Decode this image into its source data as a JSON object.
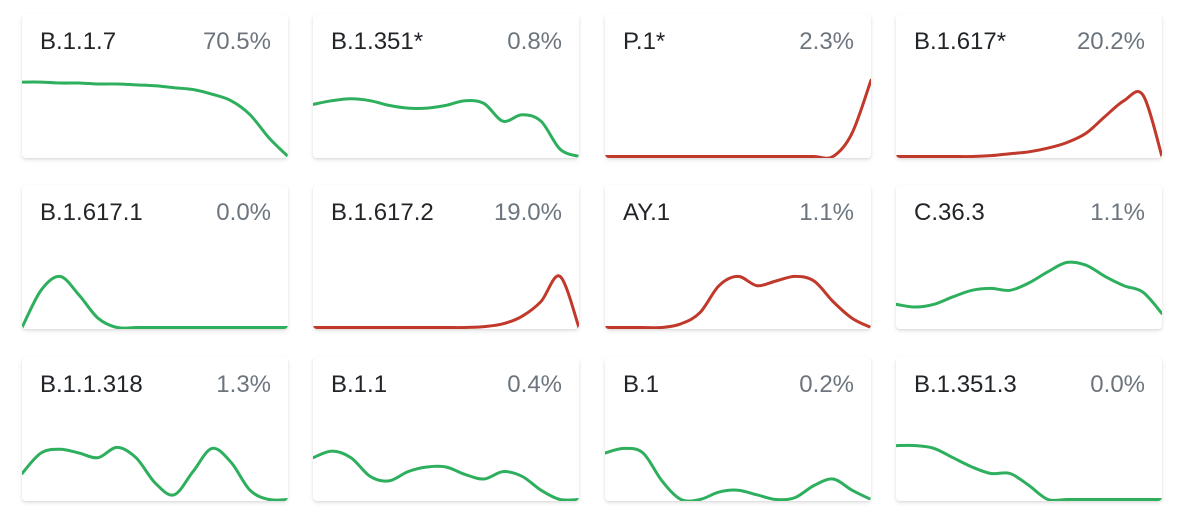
{
  "colors": {
    "increasing": "#2eaf5e",
    "decreasing": "#c0392b"
  },
  "variants": [
    {
      "name": "B.1.1.7",
      "share": "70.5%",
      "trend": "increasing",
      "curve": [
        0.2,
        0.2,
        0.21,
        0.21,
        0.22,
        0.22,
        0.23,
        0.24,
        0.26,
        0.28,
        0.33,
        0.4,
        0.55,
        0.8,
        1.05
      ]
    },
    {
      "name": "B.1.351*",
      "share": "0.8%",
      "trend": "increasing",
      "curve": [
        0.44,
        0.4,
        0.38,
        0.4,
        0.45,
        0.48,
        0.48,
        0.45,
        0.4,
        0.43,
        0.62,
        0.55,
        0.62,
        0.92,
        1.03
      ]
    },
    {
      "name": "P.1*",
      "share": "2.3%",
      "trend": "decreasing",
      "curve": [
        1.03,
        1.03,
        1.03,
        1.03,
        1.02,
        1.02,
        1.02,
        1.02,
        1.02,
        1.02,
        1.02,
        1.02,
        1.0,
        0.75,
        0.18
      ]
    },
    {
      "name": "B.1.617*",
      "share": "20.2%",
      "trend": "decreasing",
      "curve": [
        1.02,
        1.01,
        1.01,
        1.0,
        1.0,
        0.99,
        0.97,
        0.95,
        0.91,
        0.85,
        0.75,
        0.57,
        0.4,
        0.34,
        1.02
      ]
    },
    {
      "name": "B.1.617.1",
      "share": "0.0%",
      "trend": "increasing",
      "curve": [
        1.02,
        0.6,
        0.45,
        0.65,
        0.9,
        1.02,
        1.03,
        1.03,
        1.03,
        1.03,
        1.03,
        1.03,
        1.03,
        1.03,
        1.03
      ]
    },
    {
      "name": "B.1.617.2",
      "share": "19.0%",
      "trend": "decreasing",
      "curve": [
        1.02,
        1.02,
        1.01,
        1.01,
        1.01,
        1.0,
        1.0,
        1.0,
        1.0,
        0.99,
        0.96,
        0.88,
        0.72,
        0.45,
        1.02
      ]
    },
    {
      "name": "AY.1",
      "share": "1.1%",
      "trend": "decreasing",
      "curve": [
        1.02,
        1.02,
        1.01,
        1.0,
        0.96,
        0.84,
        0.55,
        0.45,
        0.55,
        0.5,
        0.45,
        0.5,
        0.72,
        0.9,
        1.02
      ]
    },
    {
      "name": "C.36.3",
      "share": "1.1%",
      "trend": "increasing",
      "curve": [
        0.75,
        0.78,
        0.75,
        0.67,
        0.6,
        0.58,
        0.6,
        0.52,
        0.4,
        0.3,
        0.33,
        0.45,
        0.55,
        0.62,
        0.85
      ]
    },
    {
      "name": "B.1.1.318",
      "share": "1.3%",
      "trend": "increasing",
      "curve": [
        0.72,
        0.5,
        0.46,
        0.5,
        0.55,
        0.44,
        0.55,
        0.82,
        0.95,
        0.7,
        0.45,
        0.6,
        0.9,
        1.03,
        1.03
      ]
    },
    {
      "name": "B.1.1",
      "share": "0.4%",
      "trend": "increasing",
      "curve": [
        0.55,
        0.48,
        0.55,
        0.75,
        0.8,
        0.7,
        0.65,
        0.65,
        0.73,
        0.78,
        0.7,
        0.75,
        0.9,
        1.02,
        1.03
      ]
    },
    {
      "name": "B.1",
      "share": "0.2%",
      "trend": "increasing",
      "curve": [
        0.5,
        0.45,
        0.5,
        0.8,
        1.0,
        1.0,
        0.92,
        0.9,
        0.95,
        1.0,
        0.98,
        0.85,
        0.78,
        0.9,
        1.02
      ]
    },
    {
      "name": "B.1.351.3",
      "share": "0.0%",
      "trend": "increasing",
      "curve": [
        0.42,
        0.42,
        0.45,
        0.55,
        0.65,
        0.72,
        0.72,
        0.85,
        1.0,
        1.03,
        1.03,
        1.03,
        1.03,
        1.03,
        1.03
      ]
    }
  ]
}
